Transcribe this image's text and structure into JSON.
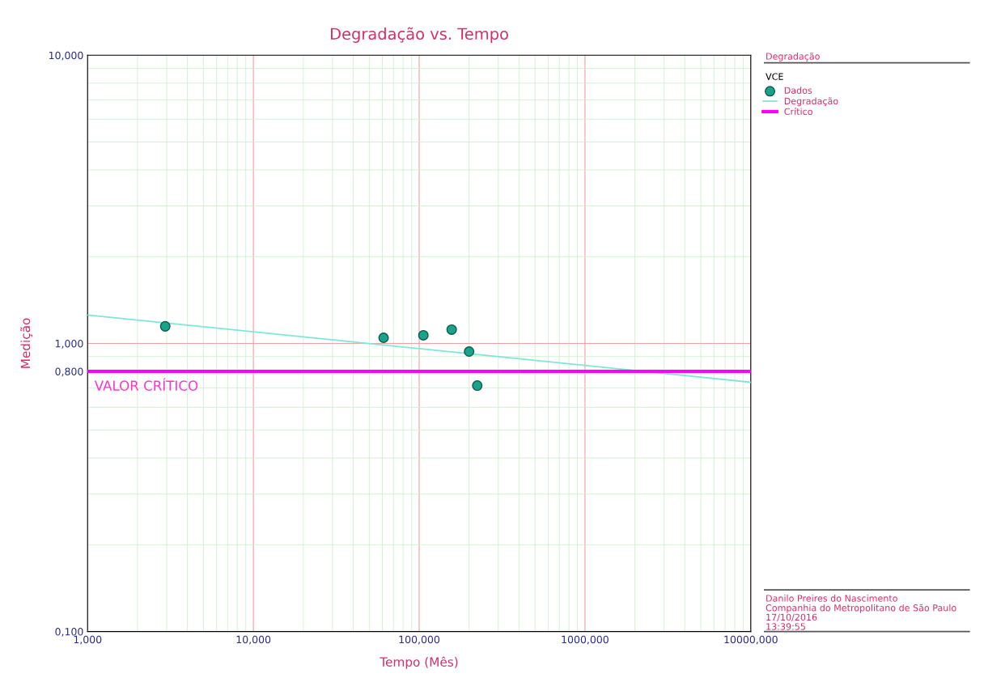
{
  "chart_data": {
    "type": "scatter",
    "title": "Degradação vs. Tempo",
    "xlabel": "Tempo (Mês)",
    "ylabel": "Medição",
    "legend_title": "Degradação",
    "log": "xy",
    "xlim": [
      1,
      10000
    ],
    "ylim": [
      0.1,
      10
    ],
    "xticks": [
      {
        "value": 1,
        "label": "1,000"
      },
      {
        "value": 10,
        "label": "10,000"
      },
      {
        "value": 100,
        "label": "100,000"
      },
      {
        "value": 1000,
        "label": "1000,000"
      },
      {
        "value": 10000,
        "label": "10000,000"
      }
    ],
    "yticks": [
      {
        "value": 0.1,
        "label": "0,100"
      },
      {
        "value": 0.8,
        "label": "0,800"
      },
      {
        "value": 1,
        "label": "1,000"
      },
      {
        "value": 10,
        "label": "10,000"
      }
    ],
    "grid": true,
    "legend": "right",
    "marker": "circle",
    "series": [
      {
        "name": "Dados",
        "color": "#1aa38a",
        "x": [
          2.94,
          61,
          106,
          157,
          200,
          224
        ],
        "values": [
          1.146,
          1.046,
          1.067,
          1.116,
          0.937,
          0.714
        ]
      },
      {
        "name": "Degradação",
        "type": "line",
        "marker": "none",
        "color": "#80e6d6",
        "x": [
          1,
          10000
        ],
        "values": [
          1.254,
          0.733
        ]
      }
    ],
    "ref_lines": [
      {
        "axis": "y",
        "value": 0.8,
        "label": "Crítico",
        "color": "#ff00ff"
      }
    ],
    "annotations": [
      {
        "text": "VALOR CRÍTICO",
        "x": 1.1,
        "y": 0.8
      },
      "VCE",
      "Danilo Preires do Nascimento",
      "Companhia do Metropolitano de São Paulo",
      "17/10/2016",
      "13:39:55"
    ]
  }
}
